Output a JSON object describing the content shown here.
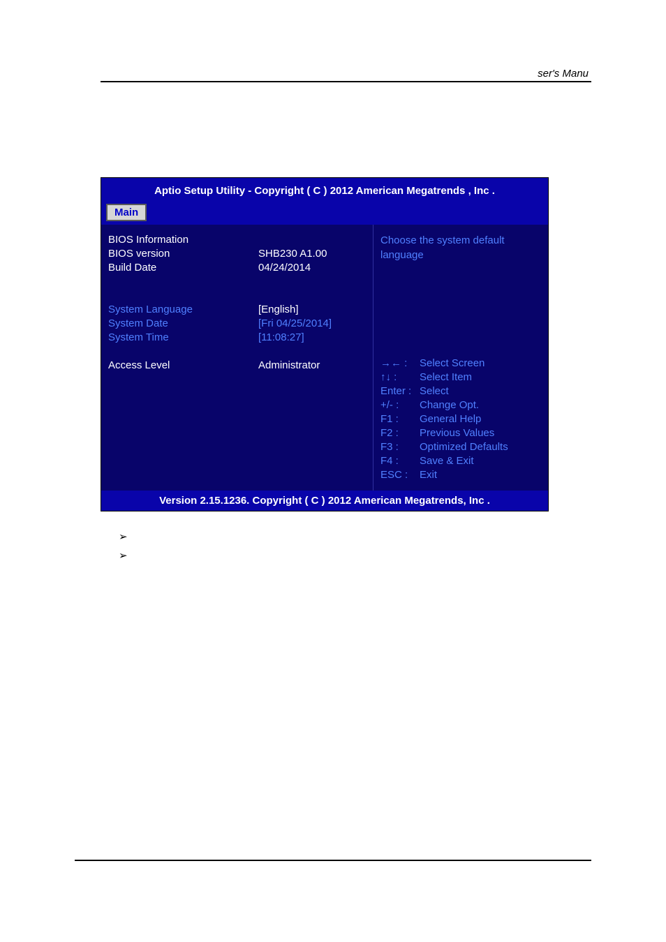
{
  "header": {
    "right_text": "ser's Manu"
  },
  "bios": {
    "title_bar": "Aptio Setup Utility - Copyright ( C ) 2012 American Megatrends , Inc .",
    "tab_label": "Main",
    "left_rows": [
      {
        "label": "BIOS Information",
        "value": "",
        "label_color": "white",
        "value_color": "white"
      },
      {
        "label": "BIOS version",
        "value": "SHB230 A1.00",
        "label_color": "white",
        "value_color": "white"
      },
      {
        "label": "Build Date",
        "value": "04/24/2014",
        "label_color": "white",
        "value_color": "white"
      }
    ],
    "left_rows2": [
      {
        "label": "System Language",
        "value": "[English]",
        "label_color": "blue",
        "value_color": "white"
      },
      {
        "label": "System Date",
        "value": "[Fri 04/25/2014]",
        "label_color": "blue",
        "value_color": "blue"
      },
      {
        "label": "System Time",
        "value": "[11:08:27]",
        "label_color": "blue",
        "value_color": "blue"
      }
    ],
    "left_rows3": [
      {
        "label": "Access Level",
        "value": "Administrator",
        "label_color": "white",
        "value_color": "white"
      }
    ],
    "help_text": "Choose the system default language",
    "legend": [
      {
        "key": "→← :",
        "desc": "Select Screen"
      },
      {
        "key": "↑↓   :",
        "desc": "Select Item"
      },
      {
        "key": "Enter :",
        "desc": "Select"
      },
      {
        "key": "+/- :",
        "desc": "Change Opt."
      },
      {
        "key": "F1 :",
        "desc": "General Help"
      },
      {
        "key": "F2 :",
        "desc": "Previous Values"
      },
      {
        "key": "F3 :",
        "desc": "Optimized Defaults"
      },
      {
        "key": "F4 :",
        "desc": "Save & Exit"
      },
      {
        "key": "ESC :",
        "desc": "Exit"
      }
    ],
    "version_bar": "Version 2.15.1236. Copyright ( C ) 2012 American Megatrends, Inc ."
  },
  "bullets": [
    "➢",
    "➢"
  ],
  "colors": {
    "bios_header_bg": "#0904aa",
    "bios_body_bg": "#08046a",
    "white": "#ffffff",
    "blue": "#5080ff",
    "tab_bg": "#d6d6d6",
    "tab_text": "#0000c8"
  }
}
